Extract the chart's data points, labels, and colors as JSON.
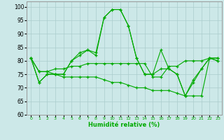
{
  "xlabel": "Humidité relative (%)",
  "xlim": [
    -0.5,
    23.5
  ],
  "ylim": [
    60,
    102
  ],
  "yticks": [
    60,
    65,
    70,
    75,
    80,
    85,
    90,
    95,
    100
  ],
  "xticks": [
    0,
    1,
    2,
    3,
    4,
    5,
    6,
    7,
    8,
    9,
    10,
    11,
    12,
    13,
    14,
    15,
    16,
    17,
    18,
    19,
    20,
    21,
    22,
    23
  ],
  "bg_color": "#cce8e8",
  "grid_color": "#aacccc",
  "line_color": "#00aa00",
  "line1": [
    81,
    72,
    75,
    75,
    75,
    80,
    83,
    84,
    82,
    96,
    99,
    99,
    93,
    81,
    75,
    75,
    84,
    77,
    75,
    67,
    73,
    77,
    81,
    80
  ],
  "line2": [
    81,
    72,
    75,
    75,
    75,
    80,
    82,
    84,
    83,
    96,
    99,
    99,
    93,
    81,
    75,
    75,
    77,
    77,
    75,
    67,
    72,
    77,
    81,
    80
  ],
  "line3": [
    81,
    76,
    76,
    77,
    77,
    78,
    78,
    79,
    79,
    79,
    79,
    79,
    79,
    79,
    79,
    74,
    74,
    78,
    78,
    80,
    80,
    80,
    81,
    81
  ],
  "line4": [
    81,
    76,
    76,
    75,
    74,
    74,
    74,
    74,
    74,
    73,
    72,
    72,
    71,
    70,
    70,
    69,
    69,
    69,
    68,
    67,
    67,
    67,
    81,
    81
  ]
}
